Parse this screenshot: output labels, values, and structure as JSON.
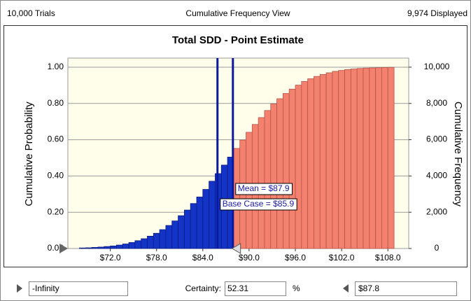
{
  "header": {
    "left": "10,000 Trials",
    "center": "Cumulative Frequency View",
    "right": "9,974 Displayed"
  },
  "chart_data": {
    "type": "histogram",
    "title": "Total SDD - Point Estimate",
    "ylabel": "Cumulative Probability",
    "y2label": "Cumulative Frequency",
    "bins": [
      68.0,
      68.8,
      69.6,
      70.4,
      71.2,
      72.0,
      72.8,
      73.6,
      74.4,
      75.2,
      76.0,
      76.8,
      77.6,
      78.4,
      79.2,
      80.0,
      80.8,
      81.6,
      82.4,
      83.2,
      84.0,
      84.8,
      85.6,
      86.4,
      87.2,
      88.0,
      88.8,
      89.6,
      90.4,
      91.2,
      92.0,
      92.8,
      93.6,
      94.4,
      95.2,
      96.0,
      96.8,
      97.6,
      98.4,
      99.2,
      100.0,
      100.8,
      101.6,
      102.4,
      103.2,
      104.0,
      104.8,
      105.6,
      106.4,
      107.2,
      108.0,
      108.8
    ],
    "values": [
      0.003,
      0.004,
      0.006,
      0.008,
      0.011,
      0.014,
      0.019,
      0.025,
      0.033,
      0.043,
      0.054,
      0.068,
      0.084,
      0.104,
      0.127,
      0.152,
      0.181,
      0.212,
      0.248,
      0.284,
      0.326,
      0.371,
      0.413,
      0.46,
      0.504,
      0.552,
      0.598,
      0.641,
      0.684,
      0.722,
      0.761,
      0.797,
      0.826,
      0.855,
      0.879,
      0.901,
      0.921,
      0.936,
      0.949,
      0.96,
      0.969,
      0.977,
      0.982,
      0.987,
      0.99,
      0.993,
      0.995,
      0.996,
      0.997,
      0.998,
      0.999
    ],
    "colors": {
      "in_range": "#1434c8",
      "out_range": "#f4806e"
    },
    "xlim": [
      66.5,
      110.7
    ],
    "ylim": [
      0,
      1.05
    ],
    "y2lim": [
      0,
      10500
    ],
    "xticks": [
      {
        "value": 72,
        "label": "$72.0"
      },
      {
        "value": 78,
        "label": "$78.0"
      },
      {
        "value": 84,
        "label": "$84.0"
      },
      {
        "value": 90,
        "label": "$90.0"
      },
      {
        "value": 96,
        "label": "$96.0"
      },
      {
        "value": 102,
        "label": "$102.0"
      },
      {
        "value": 108,
        "label": "$108.0"
      }
    ],
    "yticks": [
      {
        "value": 0,
        "label": "0.00"
      },
      {
        "value": 0.2,
        "label": "0.20"
      },
      {
        "value": 0.4,
        "label": "0.40"
      },
      {
        "value": 0.6,
        "label": "0.60"
      },
      {
        "value": 0.8,
        "label": "0.80"
      },
      {
        "value": 1,
        "label": "1.00"
      }
    ],
    "y2ticks": [
      0,
      {
        "value": 2000,
        "label": "2,000"
      },
      {
        "value": 4000,
        "label": "4,000"
      },
      {
        "value": 6000,
        "label": "6,000"
      },
      {
        "value": 8000,
        "label": "8,000"
      },
      {
        "value": 10000,
        "label": "10,000"
      }
    ],
    "grid": true,
    "annotations": [
      {
        "text": "Mean = $87.9",
        "x": 87.9
      },
      {
        "text": "Base Case = $85.9",
        "x": 85.9
      }
    ]
  },
  "footer": {
    "lower": "-Infinity",
    "certainty_label": "Certainty:",
    "certainty": "52.31",
    "unit": "%",
    "upper": {
      "value": 87.8,
      "label": "$87.8"
    }
  }
}
